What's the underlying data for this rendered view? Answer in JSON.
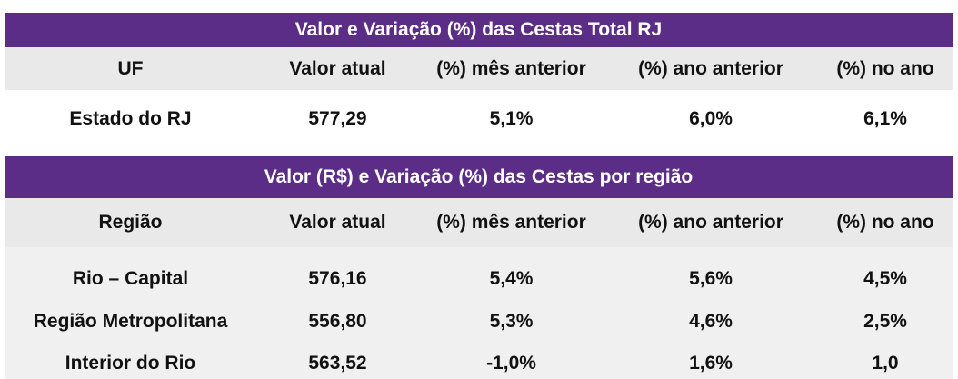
{
  "top_table": {
    "title": "Valor e Variação (%) das Cestas Total RJ",
    "headers": [
      "UF",
      "Valor atual",
      "(%) mês anterior",
      "(%) ano anterior",
      "(%) no ano"
    ],
    "rows": [
      [
        "Estado do RJ",
        "577,29",
        "5,1%",
        "6,0%",
        "6,1%"
      ]
    ]
  },
  "region_table": {
    "title": "Valor (R$) e Variação (%) das Cestas por região",
    "headers": [
      "Região",
      "Valor atual",
      "(%) mês anterior",
      "(%) ano anterior",
      "(%) no ano"
    ],
    "rows": [
      [
        "Rio – Capital",
        "576,16",
        "5,4%",
        "5,6%",
        "4,5%"
      ],
      [
        "Região Metropolitana",
        "556,80",
        "5,3%",
        "4,6%",
        "2,5%"
      ],
      [
        "Interior do Rio",
        "563,52",
        "-1,0%",
        "1,6%",
        "1,0"
      ]
    ]
  },
  "colors": {
    "title_band": "#5b2d86",
    "header_row": "#e9e9e9",
    "body_panel": "#f0f0f0"
  }
}
